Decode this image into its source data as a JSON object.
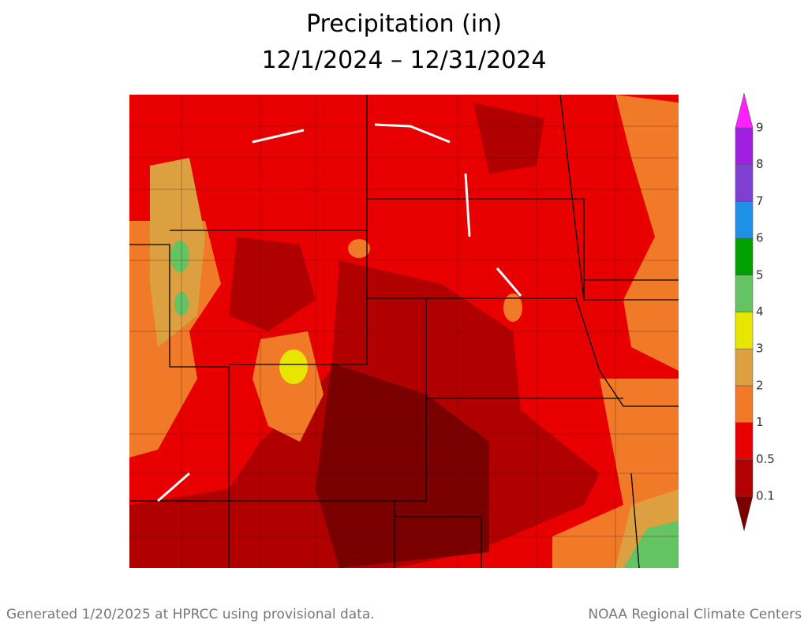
{
  "title": {
    "line1": "Precipitation (in)",
    "line2": "12/1/2024 – 12/31/2024"
  },
  "legend": {
    "breaks": [
      0.1,
      0.5,
      1,
      2,
      3,
      4,
      5,
      6,
      7,
      8,
      9
    ],
    "colors": [
      "#7a0000",
      "#b00000",
      "#e80000",
      "#f07a28",
      "#dca040",
      "#e6e600",
      "#64c464",
      "#00a000",
      "#1e90e6",
      "#7f3fd0",
      "#a020e0",
      "#ff20ff"
    ]
  },
  "footer": {
    "left": "Generated 1/20/2025 at HPRCC using provisional data.",
    "right": "NOAA Regional Climate Centers"
  }
}
